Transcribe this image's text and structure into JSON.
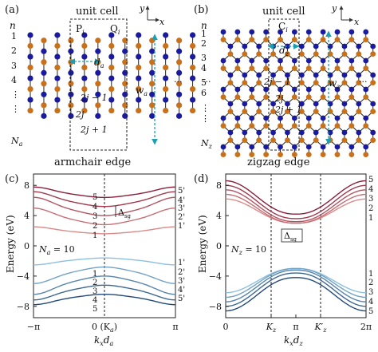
{
  "panels": {
    "a": {
      "label": "(a)",
      "unit_cell": "unit cell",
      "site_left": "P",
      "site_left_sub": "i",
      "site_right": "Q",
      "site_right_sub": "i",
      "n": "n",
      "rows": [
        "1",
        "2",
        "3",
        "4",
        "⋮",
        "⋮",
        "N"
      ],
      "rows_last_sub": "a",
      "d_label": "d",
      "d_sub": "a",
      "w_label": "w",
      "w_sub": "a",
      "idx_top": "2j − 1",
      "idx_mid": "2j",
      "idx_bot": "2j + 1",
      "edge": "armchair edge",
      "axis_y": "y",
      "axis_x": "x",
      "ellipsis": "···"
    },
    "b": {
      "label": "(b)",
      "unit_cell": "unit cell",
      "site": "C",
      "site_sub": "i",
      "n": "n",
      "rows": [
        "1",
        "2",
        "3",
        "4",
        "5",
        "6",
        "⋮",
        "⋮",
        "N"
      ],
      "rows_last_sub": "z",
      "d_label": "d",
      "d_sub": "z",
      "w_label": "w",
      "w_sub": "z",
      "idx_top": "2j − 1",
      "idx_mid": "2j",
      "idx_bot": "2j + 1",
      "edge": "zigzag edge",
      "axis_y": "y",
      "axis_x": "x",
      "ellipsis": "···"
    },
    "c": {
      "label": "(c)",
      "n_note": "N",
      "n_note_sub": "a",
      "n_note_value": " = 10",
      "gap": "Δ",
      "gap_sub": "sg",
      "mid_tick": "0 (K",
      "mid_tick_sub": "a",
      "mid_tick_close": ")",
      "band_labels_left_top": [
        "5",
        "4",
        "3",
        "2",
        "1"
      ],
      "band_labels_left_bottom": [
        "1",
        "2",
        "3",
        "4",
        "5"
      ],
      "band_labels_right_top": [
        "5'",
        "4'",
        "3'",
        "2'",
        "1'"
      ],
      "band_labels_right_bottom": [
        "1'",
        "2'",
        "3'",
        "4'",
        "5'"
      ]
    },
    "d": {
      "label": "(d)",
      "n_note": "N",
      "n_note_sub": "z",
      "n_note_value": " = 10",
      "gap": "Δ",
      "gap_sub": "sg",
      "band_labels_right_top": [
        "5",
        "4",
        "3",
        "2",
        "1"
      ],
      "band_labels_right_bottom": [
        "1",
        "2",
        "3",
        "4",
        "5"
      ]
    }
  },
  "colors": {
    "site_blue": "#1a1a9e",
    "site_orange": "#c8701a",
    "arrow": "#1aa0b0",
    "band_red_dark": "#8b1f3a",
    "band_red_light": "#d98a8a",
    "band_blue_dark": "#234a78",
    "band_blue_light": "#8cc0e0"
  },
  "chart_data": [
    {
      "panel": "c",
      "type": "line",
      "ylabel": "Energy (eV)",
      "xlabel": "k_x d_a",
      "x_ticks": [
        "−π",
        "0 (K_a)",
        "π"
      ],
      "y_ticks": [
        "−8",
        "−4",
        "0",
        "4",
        "8"
      ],
      "xlim": [
        -3.1416,
        3.1416
      ],
      "ylim": [
        -9.5,
        9.5
      ],
      "annotation": "N_a = 10",
      "gap_label": "Δsg",
      "series": [
        {
          "label": "1",
          "k0": 0,
          "center": 1.6,
          "amp": 0.8,
          "sign": 1
        },
        {
          "label": "2",
          "k0": 0,
          "center": 2.8,
          "amp": 1.9,
          "sign": 1
        },
        {
          "label": "3",
          "k0": 0,
          "center": 4.0,
          "amp": 2.1,
          "sign": 1
        },
        {
          "label": "4",
          "k0": 0,
          "center": 5.2,
          "amp": 1.7,
          "sign": 1
        },
        {
          "label": "5",
          "k0": 0,
          "center": 6.4,
          "amp": 1.2,
          "sign": 1
        },
        {
          "label": "1'",
          "k0": 0,
          "center": -1.6,
          "amp": 0.8,
          "sign": -1
        },
        {
          "label": "2'",
          "k0": 0,
          "center": -2.8,
          "amp": 1.9,
          "sign": -1
        },
        {
          "label": "3'",
          "k0": 0,
          "center": -4.0,
          "amp": 2.1,
          "sign": -1
        },
        {
          "label": "4'",
          "k0": 0,
          "center": -5.2,
          "amp": 1.7,
          "sign": -1
        },
        {
          "label": "5'",
          "k0": 0,
          "center": -6.4,
          "amp": 1.2,
          "sign": -1
        }
      ]
    },
    {
      "panel": "d",
      "type": "line",
      "ylabel": "Energy (eV)",
      "xlabel": "k_x d_z",
      "x_ticks": [
        "0",
        "K_z",
        "π",
        "K'_z",
        "2π"
      ],
      "y_ticks": [
        "−8",
        "−4",
        "0",
        "4",
        "8"
      ],
      "xlim": [
        0,
        6.2832
      ],
      "ylim": [
        -9.5,
        9.5
      ],
      "annotation": "N_z = 10",
      "gap_label": "Δsg",
      "series": [
        {
          "label": "1",
          "top": 3.0,
          "end": 6.2
        },
        {
          "label": "2",
          "top": 3.0,
          "end": 6.8
        },
        {
          "label": "3",
          "top": 3.2,
          "end": 7.4
        },
        {
          "label": "4",
          "top": 3.6,
          "end": 8.0
        },
        {
          "label": "5",
          "top": 4.2,
          "end": 8.6
        },
        {
          "label": "1",
          "top": -3.0,
          "end": -6.2
        },
        {
          "label": "2",
          "top": -3.0,
          "end": -6.8
        },
        {
          "label": "3",
          "top": -3.2,
          "end": -7.4
        },
        {
          "label": "4",
          "top": -3.6,
          "end": -8.0
        },
        {
          "label": "5",
          "top": -4.2,
          "end": -8.6
        }
      ]
    }
  ]
}
